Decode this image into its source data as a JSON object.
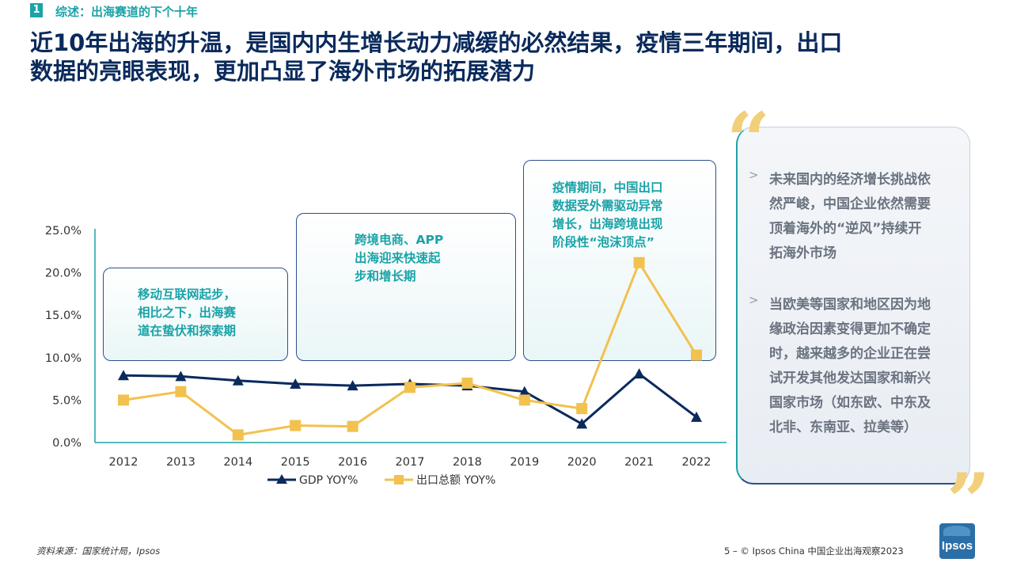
{
  "header": {
    "section_number": "1",
    "section_title": "综述：出海赛道的下个十年",
    "headline_line1": "近10年出海的升温，是国内内生增长动力减缓的必然结果，疫情三年期间，出口",
    "headline_line2": "数据的亮眼表现，更加凸显了海外市场的拓展潜力"
  },
  "annotations": [
    {
      "lines": [
        "移动互联网起步，",
        "相比之下，出海赛",
        "道在蛰伏和探索期"
      ]
    },
    {
      "lines": [
        "跨境电商、APP",
        "出海迎来快速起",
        "步和增长期"
      ]
    },
    {
      "lines": [
        "疫情期间，中国出口",
        "数据受外需驱动异常",
        "增长，出海跨境出现",
        "阶段性“泡沫顶点”"
      ]
    }
  ],
  "side_panel": {
    "bullet_symbol": ">",
    "bullets": [
      [
        "未来国内的经济增长挑战依",
        "然严峻，中国企业依然需要",
        "顶着海外的“逆风”持续开",
        "拓海外市场"
      ],
      [
        "当欧美等国家和地区因为地",
        "缘政治因素变得更加不确定",
        "时，越来越多的企业正在尝",
        "试开发其他发达国家和新兴",
        "国家市场（如东欧、中东及",
        "北非、东南亚、拉美等）"
      ]
    ],
    "open_quote": "“",
    "close_quote": "”"
  },
  "footer": {
    "source": "资料来源：国家统计局，Ipsos",
    "page_info": "5 – © Ipsos China 中国企业出海观察2023",
    "logo_text": "Ipsos"
  },
  "colors": {
    "navy": "#0a2a5c",
    "teal": "#1aa3a8",
    "gold": "#f2c14e",
    "axis": "#1aa3a8"
  },
  "chart_data": {
    "type": "line",
    "x": [
      "2012",
      "2013",
      "2014",
      "2015",
      "2016",
      "2017",
      "2018",
      "2019",
      "2020",
      "2021",
      "2022"
    ],
    "ylim": [
      0,
      25
    ],
    "yticks": [
      "0.0%",
      "5.0%",
      "10.0%",
      "15.0%",
      "20.0%",
      "25.0%"
    ],
    "ytick_values": [
      0,
      5,
      10,
      15,
      20,
      25
    ],
    "legend_position": "bottom",
    "series": [
      {
        "name": "GDP YOY%",
        "marker": "triangle",
        "color": "#0a2a5c",
        "values": [
          7.9,
          7.8,
          7.3,
          6.9,
          6.7,
          6.9,
          6.7,
          6.0,
          2.2,
          8.1,
          3.0
        ]
      },
      {
        "name": "出口总额 YOY%",
        "marker": "square",
        "color": "#f2c14e",
        "values": [
          5.0,
          6.0,
          0.9,
          2.0,
          1.9,
          6.5,
          7.0,
          5.0,
          4.0,
          21.2,
          10.3
        ]
      }
    ]
  }
}
